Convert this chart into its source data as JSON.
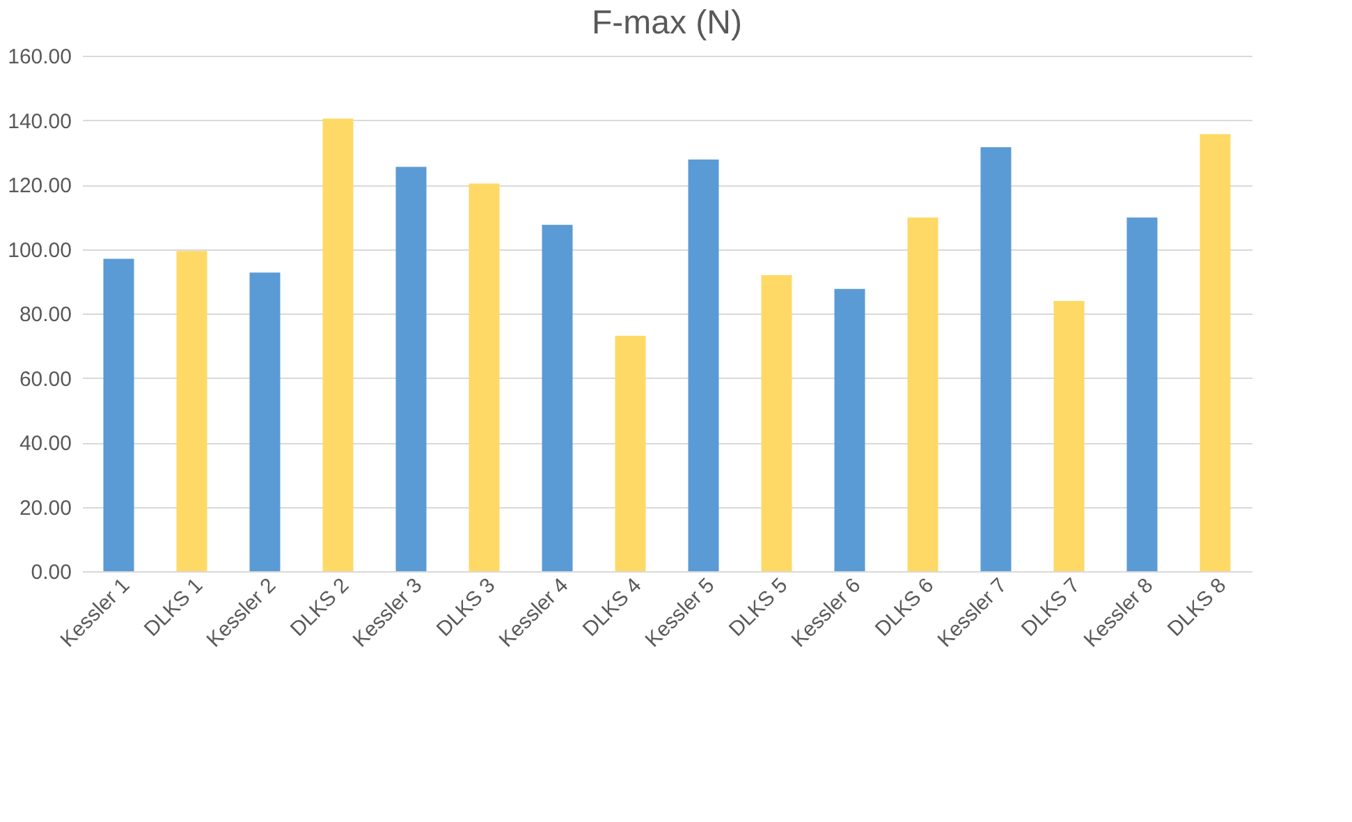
{
  "chart_data": {
    "type": "bar",
    "title": "F-max (N)",
    "categories": [
      "Kessler 1",
      "DLKS 1",
      "Kessler 2",
      "DLKS 2",
      "Kessler 3",
      "DLKS 3",
      "Kessler 4",
      "DLKS 4",
      "Kessler 5",
      "DLKS 5",
      "Kessler 6",
      "DLKS 6",
      "Kessler 7",
      "DLKS 7",
      "Kessler 8",
      "DLKS 8"
    ],
    "values": [
      97.0,
      99.4,
      92.7,
      140.5,
      125.5,
      120.3,
      107.5,
      73.1,
      127.8,
      91.9,
      87.6,
      109.8,
      131.6,
      83.9,
      109.8,
      135.7
    ],
    "colors": [
      "#5b9bd5",
      "#ffd966",
      "#5b9bd5",
      "#ffd966",
      "#5b9bd5",
      "#ffd966",
      "#5b9bd5",
      "#ffd966",
      "#5b9bd5",
      "#ffd966",
      "#5b9bd5",
      "#ffd966",
      "#5b9bd5",
      "#ffd966",
      "#5b9bd5",
      "#ffd966"
    ],
    "ylim": [
      0,
      160
    ],
    "yticks": [
      {
        "value": 0,
        "label": "0.00"
      },
      {
        "value": 20,
        "label": "20.00"
      },
      {
        "value": 40,
        "label": "40.00"
      },
      {
        "value": 60,
        "label": "60.00"
      },
      {
        "value": 80,
        "label": "80.00"
      },
      {
        "value": 100,
        "label": "100.00"
      },
      {
        "value": 120,
        "label": "120.00"
      },
      {
        "value": 140,
        "label": "140.00"
      },
      {
        "value": 160,
        "label": "160.00"
      }
    ],
    "grid": "y"
  }
}
